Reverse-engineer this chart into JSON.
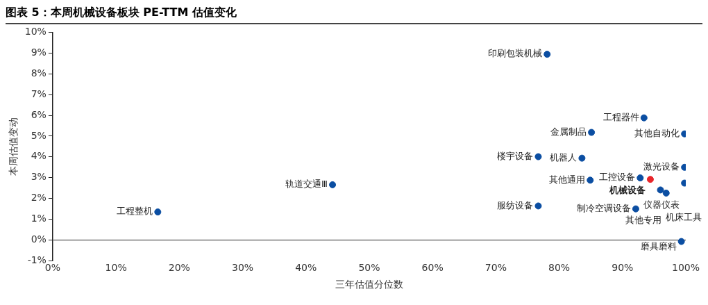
{
  "chart_data": {
    "type": "scatter",
    "title": "图表 5：本周机械设备板块 PE-TTM 估值变化",
    "xlabel": "三年估值分位数",
    "ylabel": "本周估值变动",
    "marker": "circle",
    "xlim": [
      0,
      100
    ],
    "xticks": [
      {
        "value": 0,
        "label": "0%"
      },
      {
        "value": 10,
        "label": "10%"
      },
      {
        "value": 20,
        "label": "20%"
      },
      {
        "value": 30,
        "label": "30%"
      },
      {
        "value": 40,
        "label": "40%"
      },
      {
        "value": 50,
        "label": "50%"
      },
      {
        "value": 60,
        "label": "60%"
      },
      {
        "value": 70,
        "label": "70%"
      },
      {
        "value": 80,
        "label": "80%"
      },
      {
        "value": 90,
        "label": "90%"
      },
      {
        "value": 100,
        "label": "100%"
      }
    ],
    "ylim": [
      -1,
      10
    ],
    "yticks": [
      {
        "value": -1,
        "label": "-1%"
      },
      {
        "value": 0,
        "label": "0%"
      },
      {
        "value": 1,
        "label": "1%"
      },
      {
        "value": 2,
        "label": "2%"
      },
      {
        "value": 3,
        "label": "3%"
      },
      {
        "value": 4,
        "label": "4%"
      },
      {
        "value": 5,
        "label": "5%"
      },
      {
        "value": 6,
        "label": "6%"
      },
      {
        "value": 7,
        "label": "7%"
      },
      {
        "value": 8,
        "label": "8%"
      },
      {
        "value": 9,
        "label": "9%"
      },
      {
        "value": 10,
        "label": "10%"
      }
    ],
    "series": [
      {
        "color": "#0b4ea2",
        "x": [
          16.6,
          44.2,
          78.1,
          93.4,
          85.1,
          99.8,
          76.7,
          83.6,
          99.8,
          84.9,
          92.8,
          99.8,
          96.0,
          96.9,
          76.7,
          92.1,
          99.3
        ],
        "values": [
          1.35,
          2.66,
          8.94,
          5.88,
          5.18,
          5.11,
          4.01,
          3.94,
          3.5,
          2.88,
          2.99,
          2.74,
          2.41,
          2.26,
          1.64,
          1.5,
          -0.07
        ]
      },
      {
        "name": "机械设备",
        "color": "#e8262b",
        "x": [
          94.4
        ],
        "values": [
          2.92
        ]
      }
    ],
    "annotations": [
      {
        "text": "工程整机",
        "x": 16.6,
        "y": 1.35
      },
      {
        "text": "轨道交通Ⅲ",
        "x": 44.2,
        "y": 2.66
      },
      {
        "text": "印刷包装机械",
        "x": 78.1,
        "y": 8.94
      },
      {
        "text": "工程器件",
        "x": 93.4,
        "y": 5.88
      },
      {
        "text": "金属制品",
        "x": 85.1,
        "y": 5.18
      },
      {
        "text": "其他自动化",
        "x": 99.8,
        "y": 5.11
      },
      {
        "text": "楼宇设备",
        "x": 76.7,
        "y": 4.01
      },
      {
        "text": "机器人",
        "x": 83.6,
        "y": 3.94
      },
      {
        "text": "激光设备",
        "x": 99.8,
        "y": 3.5
      },
      {
        "text": "其他通用",
        "x": 84.9,
        "y": 2.88
      },
      {
        "text": "工控设备",
        "x": 92.8,
        "y": 2.99
      },
      {
        "text": "仪器仪表",
        "x": 99.8,
        "y": 2.74
      },
      {
        "text": "机床工具",
        "x": 96.0,
        "y": 2.41
      },
      {
        "text": "其他专用",
        "x": 96.9,
        "y": 2.26
      },
      {
        "text": "服纺设备",
        "x": 76.7,
        "y": 1.64
      },
      {
        "text": "制冷空调设备",
        "x": 92.1,
        "y": 1.5
      },
      {
        "text": "磨具磨料",
        "x": 99.3,
        "y": -0.07
      }
    ]
  }
}
